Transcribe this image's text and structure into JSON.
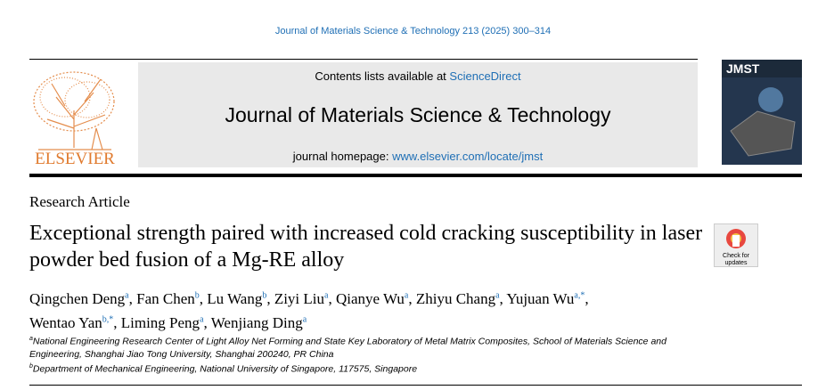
{
  "header": {
    "citation": "Journal of Materials Science & Technology 213 (2025) 300–314",
    "contents_prefix": "Contents lists available at",
    "contents_link": "ScienceDirect",
    "journal_title": "Journal of Materials Science & Technology",
    "homepage_prefix": "journal homepage:",
    "homepage_link": "www.elsevier.com/locate/jmst",
    "publisher": "ELSEVIER",
    "cover_label": "JMST"
  },
  "article": {
    "type": "Research Article",
    "title": "Exceptional strength paired with increased cold cracking susceptibility in laser powder bed fusion of a Mg-RE alloy",
    "badge_line1": "Check for",
    "badge_line2": "updates"
  },
  "authors": [
    {
      "name": "Qingchen Deng",
      "affiliation": "a",
      "separator": ","
    },
    {
      "name": "Fan Chen",
      "affiliation": "b",
      "separator": ","
    },
    {
      "name": "Lu Wang",
      "affiliation": "b",
      "separator": ","
    },
    {
      "name": "Ziyi Liu",
      "affiliation": "a",
      "separator": ","
    },
    {
      "name": "Qianye Wu",
      "affiliation": "a",
      "separator": ","
    },
    {
      "name": "Zhiyu Chang",
      "affiliation": "a",
      "separator": ","
    },
    {
      "name": "Yujuan Wu",
      "affiliation": "a,*",
      "separator": ","
    },
    {
      "name": "Wentao Yan",
      "affiliation": "b,*",
      "separator": ","
    },
    {
      "name": "Liming Peng",
      "affiliation": "a",
      "separator": ","
    },
    {
      "name": "Wenjiang Ding",
      "affiliation": "a"
    }
  ],
  "affiliations": [
    {
      "mark": "a",
      "text": "National Engineering Research Center of Light Alloy Net Forming and State Key Laboratory of Metal Matrix Composites, School of Materials Science and Engineering, Shanghai Jiao Tong University, Shanghai 200240, PR China"
    },
    {
      "mark": "b",
      "text": "Department of Mechanical Engineering, National University of Singapore, 117575, Singapore"
    }
  ]
}
